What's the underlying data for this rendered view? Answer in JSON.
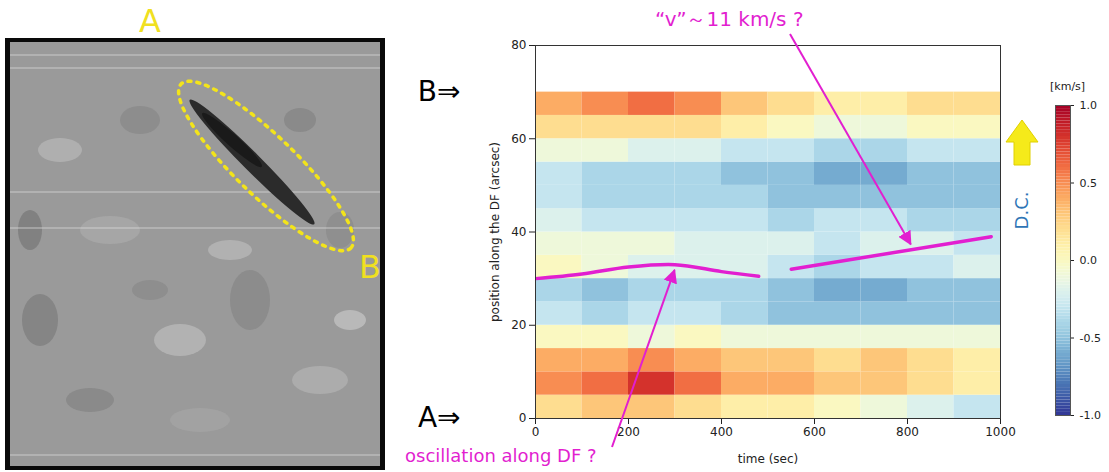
{
  "image_panel": {
    "labels": [
      {
        "text": "A"
      },
      {
        "text": "B"
      }
    ]
  },
  "chart_data": {
    "type": "heatmap",
    "x_label": "time (sec)",
    "y_label": "position along the DF (arcsec)",
    "xlim": [
      0,
      1000
    ],
    "xticks": [
      0,
      200,
      400,
      600,
      800,
      1000
    ],
    "ylim": [
      0,
      80
    ],
    "yticks": [
      0,
      20,
      40,
      60,
      80
    ],
    "cells": {
      "x_bins": [
        0,
        100,
        200,
        300,
        400,
        500,
        600,
        700,
        800,
        900,
        1000
      ],
      "y_bins": [
        0,
        5,
        10,
        15,
        20,
        25,
        30,
        35,
        40,
        45,
        50,
        55,
        60,
        65,
        70
      ],
      "values": [
        [
          0.2,
          0.3,
          0.3,
          0.2,
          0.1,
          0.1,
          0.0,
          -0.1,
          -0.2,
          -0.3
        ],
        [
          0.5,
          0.6,
          0.8,
          0.6,
          0.4,
          0.4,
          0.3,
          0.3,
          0.2,
          0.1
        ],
        [
          0.4,
          0.4,
          0.5,
          0.4,
          0.3,
          0.3,
          0.2,
          0.3,
          0.2,
          0.1
        ],
        [
          0.0,
          0.0,
          -0.1,
          0.0,
          -0.1,
          -0.1,
          -0.1,
          -0.1,
          -0.1,
          -0.1
        ],
        [
          -0.3,
          -0.4,
          -0.3,
          -0.3,
          -0.4,
          -0.5,
          -0.5,
          -0.5,
          -0.5,
          -0.5
        ],
        [
          -0.4,
          -0.5,
          -0.4,
          -0.4,
          -0.4,
          -0.5,
          -0.6,
          -0.6,
          -0.5,
          -0.5
        ],
        [
          0.0,
          -0.1,
          -0.2,
          -0.2,
          -0.2,
          -0.3,
          -0.4,
          -0.3,
          -0.3,
          -0.2
        ],
        [
          -0.1,
          -0.1,
          -0.1,
          -0.2,
          -0.2,
          -0.2,
          -0.3,
          -0.2,
          -0.2,
          -0.3
        ],
        [
          -0.2,
          -0.3,
          -0.3,
          -0.3,
          -0.3,
          -0.4,
          -0.3,
          -0.3,
          -0.4,
          -0.4
        ],
        [
          -0.3,
          -0.4,
          -0.4,
          -0.4,
          -0.4,
          -0.5,
          -0.5,
          -0.5,
          -0.5,
          -0.5
        ],
        [
          -0.3,
          -0.4,
          -0.4,
          -0.4,
          -0.5,
          -0.5,
          -0.6,
          -0.6,
          -0.5,
          -0.5
        ],
        [
          -0.1,
          -0.1,
          -0.2,
          -0.2,
          -0.3,
          -0.3,
          -0.4,
          -0.4,
          -0.3,
          -0.3
        ],
        [
          0.2,
          0.2,
          0.2,
          0.2,
          0.1,
          0.0,
          -0.1,
          -0.1,
          0.0,
          0.0
        ],
        [
          0.4,
          0.5,
          0.6,
          0.5,
          0.3,
          0.2,
          0.1,
          0.1,
          0.2,
          0.2
        ]
      ]
    },
    "colorbar": {
      "label": "[km/s]",
      "range": [
        -1,
        1
      ],
      "ticks": [
        {
          "value": -1,
          "label": "-1.0"
        },
        {
          "value": -0.5,
          "label": "-0.5"
        },
        {
          "value": 0,
          "label": "0.0"
        },
        {
          "value": 0.5,
          "label": "0.5"
        },
        {
          "value": 1,
          "label": "1.0"
        }
      ]
    },
    "annotations": [
      {
        "text": "oscillation along DF ?",
        "color": "#e21fd0",
        "points": [
          [
            0,
            30
          ],
          [
            100,
            31
          ],
          [
            200,
            32.5
          ],
          [
            300,
            33
          ],
          [
            400,
            31.5
          ],
          [
            480,
            30.5
          ]
        ]
      },
      {
        "text": "“v”～11 km/s ?",
        "color": "#e21fd0",
        "points": [
          [
            550,
            32
          ],
          [
            980,
            39
          ]
        ]
      }
    ],
    "end_markers": [
      {
        "text": "B⇒",
        "position": 70
      },
      {
        "text": "A⇒",
        "position": 0
      }
    ],
    "side_label": {
      "text": "D.C.",
      "color": "#2e75b6"
    }
  }
}
